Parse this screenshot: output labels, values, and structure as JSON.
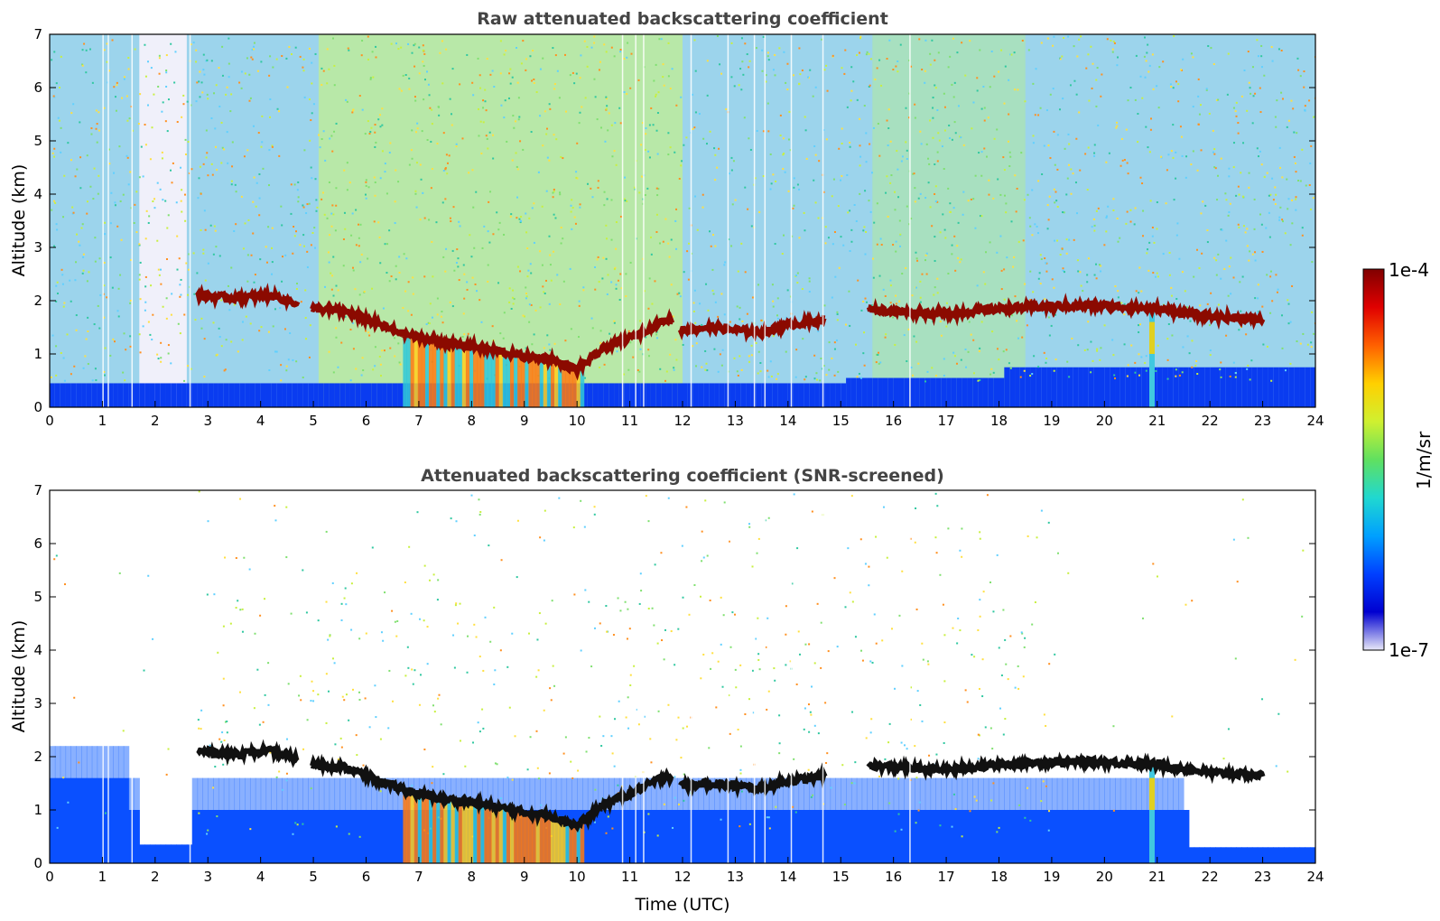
{
  "chart_data": [
    {
      "type": "heatmap",
      "title": "Raw attenuated backscattering coefficient",
      "xlabel": "",
      "ylabel": "Altitude (km)",
      "xlim": [
        0,
        24
      ],
      "ylim": [
        0,
        7
      ],
      "xticks": [
        "0",
        "1",
        "2",
        "3",
        "4",
        "5",
        "6",
        "7",
        "8",
        "9",
        "10",
        "11",
        "12",
        "13",
        "14",
        "15",
        "16",
        "17",
        "18",
        "19",
        "20",
        "21",
        "22",
        "23",
        "24"
      ],
      "yticks": [
        "0",
        "1",
        "2",
        "3",
        "4",
        "5",
        "6",
        "7"
      ],
      "cloud_layer_km": [
        {
          "x": 2.8,
          "y": 2.1
        },
        {
          "x": 3.5,
          "y": 2.05
        },
        {
          "x": 4.2,
          "y": 2.1
        },
        {
          "x": 4.7,
          "y": 1.95
        },
        {
          "x": 5.0,
          "y": 1.85
        },
        {
          "x": 5.6,
          "y": 1.8
        },
        {
          "x": 6.0,
          "y": 1.65
        },
        {
          "x": 6.5,
          "y": 1.45
        },
        {
          "x": 7.0,
          "y": 1.3
        },
        {
          "x": 7.5,
          "y": 1.2
        },
        {
          "x": 8.0,
          "y": 1.15
        },
        {
          "x": 8.5,
          "y": 1.05
        },
        {
          "x": 9.0,
          "y": 0.95
        },
        {
          "x": 9.5,
          "y": 0.9
        },
        {
          "x": 10.0,
          "y": 0.7
        },
        {
          "x": 10.5,
          "y": 1.1
        },
        {
          "x": 11.0,
          "y": 1.3
        },
        {
          "x": 11.7,
          "y": 1.65
        },
        {
          "x": 12.0,
          "y": 1.45
        },
        {
          "x": 12.5,
          "y": 1.5
        },
        {
          "x": 13.0,
          "y": 1.45
        },
        {
          "x": 13.5,
          "y": 1.4
        },
        {
          "x": 14.0,
          "y": 1.55
        },
        {
          "x": 14.5,
          "y": 1.6
        },
        {
          "x": 15.5,
          "y": 1.85
        },
        {
          "x": 16.0,
          "y": 1.8
        },
        {
          "x": 17.0,
          "y": 1.75
        },
        {
          "x": 18.0,
          "y": 1.85
        },
        {
          "x": 19.0,
          "y": 1.9
        },
        {
          "x": 20.0,
          "y": 1.9
        },
        {
          "x": 21.0,
          "y": 1.85
        },
        {
          "x": 22.0,
          "y": 1.7
        },
        {
          "x": 23.0,
          "y": 1.65
        }
      ]
    },
    {
      "type": "heatmap",
      "title": "Attenuated backscattering coefficient (SNR-screened)",
      "xlabel": "Time (UTC)",
      "ylabel": "Altitude (km)",
      "xlim": [
        0,
        24
      ],
      "ylim": [
        0,
        7
      ],
      "xticks": [
        "0",
        "1",
        "2",
        "3",
        "4",
        "5",
        "6",
        "7",
        "8",
        "9",
        "10",
        "11",
        "12",
        "13",
        "14",
        "15",
        "16",
        "17",
        "18",
        "19",
        "20",
        "21",
        "22",
        "23",
        "24"
      ],
      "yticks": [
        "0",
        "1",
        "2",
        "3",
        "4",
        "5",
        "6",
        "7"
      ]
    }
  ],
  "colorbar": {
    "label": "1/m/sr",
    "max_label": "1e-4",
    "min_label": "1e-7",
    "colors": [
      "#e8e8f8",
      "#0000d0",
      "#0040ff",
      "#00a0ff",
      "#20d8d0",
      "#60e060",
      "#d0f030",
      "#ffd000",
      "#ff6000",
      "#e00000",
      "#800000"
    ]
  }
}
